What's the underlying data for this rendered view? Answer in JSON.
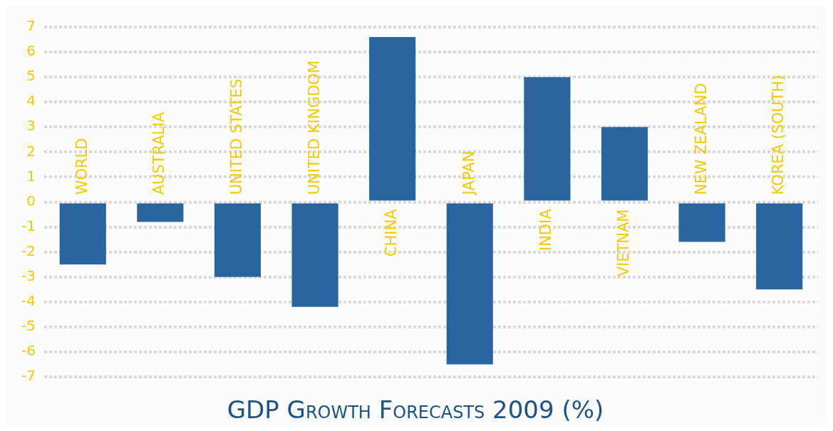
{
  "chart_data": {
    "type": "bar",
    "title": "GDP Growth Forecasts 2009 (%)",
    "categories": [
      "WORLD",
      "AUSTRALIA",
      "UNITED STATES",
      "UNITED KINGDOM",
      "CHINA",
      "JAPAN",
      "INDIA",
      "VIETNAM",
      "NEW ZEALAND",
      "KOREA (SOUTH)"
    ],
    "values": [
      -2.5,
      -0.8,
      -3.0,
      -4.2,
      6.6,
      -6.5,
      5.0,
      3.0,
      -1.6,
      -3.5
    ],
    "color": "#2b659f",
    "ylim": [
      -7,
      7
    ],
    "yticks": [
      -7,
      -6,
      -5,
      -4,
      -3,
      -2,
      -1,
      0,
      1,
      2,
      3,
      4,
      5,
      6,
      7
    ],
    "grid": "y",
    "legend": false
  }
}
